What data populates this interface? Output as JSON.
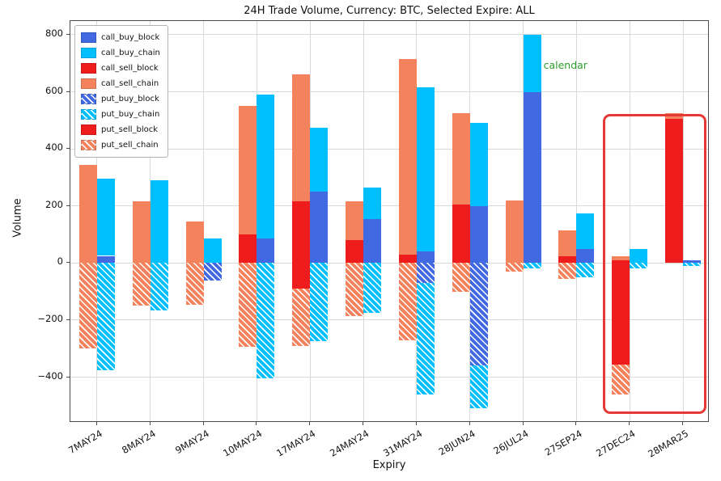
{
  "chart_data": {
    "type": "bar",
    "title": "24H Trade Volume, Currency: BTC, Selected Expire: ALL",
    "xlabel": "Expiry",
    "ylabel": "Volume",
    "ylim": [
      -560,
      848
    ],
    "yticks": [
      800,
      600,
      400,
      200,
      0,
      -200,
      -400
    ],
    "grid": true,
    "legend_position": "upper-left",
    "categories": [
      "7MAY24",
      "8MAY24",
      "9MAY24",
      "10MAY24",
      "17MAY24",
      "24MAY24",
      "31MAY24",
      "28JUN24",
      "26JUL24",
      "27SEP24",
      "27DEC24",
      "28MAR25"
    ],
    "legend": [
      {
        "key": "call_buy_block",
        "label": "call_buy_block",
        "color": "#4169e1",
        "hatch": false
      },
      {
        "key": "call_buy_chain",
        "label": "call_buy_chain",
        "color": "#00bfff",
        "hatch": false
      },
      {
        "key": "call_sell_block",
        "label": "call_sell_block",
        "color": "#ee1c1c",
        "hatch": false
      },
      {
        "key": "call_sell_chain",
        "label": "call_sell_chain",
        "color": "#f4835d",
        "hatch": false
      },
      {
        "key": "put_buy_block",
        "label": "put_buy_block",
        "color": "#4169e1",
        "hatch": true
      },
      {
        "key": "put_buy_chain",
        "label": "put_buy_chain",
        "color": "#00bfff",
        "hatch": true
      },
      {
        "key": "put_sell_block",
        "label": "put_sell_block",
        "color": "#ee1c1c",
        "hatch": false
      },
      {
        "key": "put_sell_chain",
        "label": "put_sell_chain",
        "color": "#f4835d",
        "hatch": true
      }
    ],
    "bars": [
      {
        "expiry": "7MAY24",
        "call_sell_block": 0,
        "call_sell_chain": 345,
        "put_sell_block": 0,
        "put_sell_chain": -300,
        "call_buy_block": 25,
        "call_buy_chain": 270,
        "put_buy_block": 0,
        "put_buy_chain": -375
      },
      {
        "expiry": "8MAY24",
        "call_sell_block": 0,
        "call_sell_chain": 215,
        "put_sell_block": 0,
        "put_sell_chain": -150,
        "call_buy_block": 0,
        "call_buy_chain": 290,
        "put_buy_block": 0,
        "put_buy_chain": -165
      },
      {
        "expiry": "9MAY24",
        "call_sell_block": 0,
        "call_sell_chain": 145,
        "put_sell_block": 0,
        "put_sell_chain": -145,
        "call_buy_block": 0,
        "call_buy_chain": 85,
        "put_buy_block": -60,
        "put_buy_chain": 0
      },
      {
        "expiry": "10MAY24",
        "call_sell_block": 100,
        "call_sell_chain": 450,
        "put_sell_block": 0,
        "put_sell_chain": -295,
        "call_buy_block": 85,
        "call_buy_chain": 505,
        "put_buy_block": 0,
        "put_buy_chain": -405
      },
      {
        "expiry": "17MAY24",
        "call_sell_block": 215,
        "call_sell_chain": 445,
        "put_sell_block": -90,
        "put_sell_chain": -200,
        "call_buy_block": 250,
        "call_buy_chain": 225,
        "put_buy_block": 0,
        "put_buy_chain": -275
      },
      {
        "expiry": "24MAY24",
        "call_sell_block": 80,
        "call_sell_chain": 135,
        "put_sell_block": 0,
        "put_sell_chain": -185,
        "call_buy_block": 155,
        "call_buy_chain": 110,
        "put_buy_block": 0,
        "put_buy_chain": -175
      },
      {
        "expiry": "31MAY24",
        "call_sell_block": 30,
        "call_sell_chain": 685,
        "put_sell_block": 0,
        "put_sell_chain": -270,
        "call_buy_block": 40,
        "call_buy_chain": 575,
        "put_buy_block": -70,
        "put_buy_chain": -390
      },
      {
        "expiry": "28JUN24",
        "call_sell_block": 205,
        "call_sell_chain": 320,
        "put_sell_block": 0,
        "put_sell_chain": -100,
        "call_buy_block": 200,
        "call_buy_chain": 290,
        "put_buy_block": -360,
        "put_buy_chain": -150
      },
      {
        "expiry": "26JUL24",
        "call_sell_block": 0,
        "call_sell_chain": 220,
        "put_sell_block": 0,
        "put_sell_chain": -30,
        "call_buy_block": 600,
        "call_buy_chain": 200,
        "put_buy_block": 0,
        "put_buy_chain": -20
      },
      {
        "expiry": "27SEP24",
        "call_sell_block": 25,
        "call_sell_chain": 90,
        "put_sell_block": 0,
        "put_sell_chain": -55,
        "call_buy_block": 50,
        "call_buy_chain": 125,
        "put_buy_block": 0,
        "put_buy_chain": -50
      },
      {
        "expiry": "27DEC24",
        "call_sell_block": 10,
        "call_sell_chain": 15,
        "put_sell_block": -355,
        "put_sell_chain": -105,
        "call_buy_block": 0,
        "call_buy_chain": 50,
        "put_buy_block": 0,
        "put_buy_chain": -20
      },
      {
        "expiry": "28MAR25",
        "call_sell_block": 505,
        "call_sell_chain": 20,
        "put_sell_block": 0,
        "put_sell_chain": 0,
        "call_buy_block": 10,
        "call_buy_chain": 0,
        "put_buy_block": 0,
        "put_buy_chain": -10
      }
    ],
    "annotations": [
      {
        "text": "calendar",
        "color": "#2ca02c",
        "expiry": "26JUL24",
        "v": 690
      }
    ],
    "highlight_box": {
      "from_expiry": "27DEC24",
      "to_expiry": "28MAR25",
      "v_top": 520,
      "v_bottom": -515,
      "color": "#e53935"
    }
  }
}
